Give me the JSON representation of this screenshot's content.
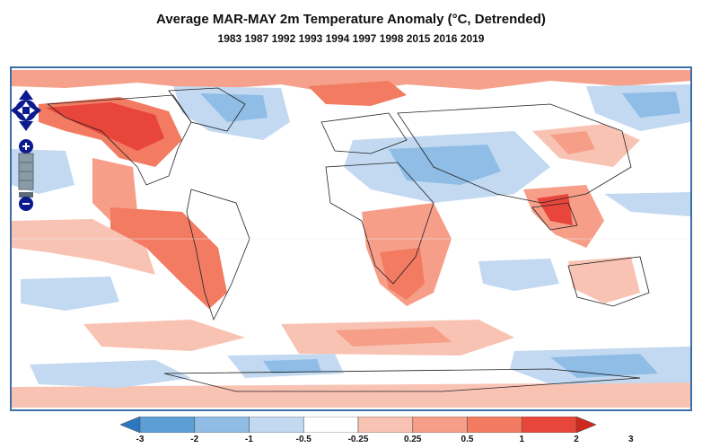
{
  "title": "Average MAR-MAY 2m Temperature Anomaly (°C, Detrended)",
  "subtitle": "1983 1987 1992 1993 1994 1997 1998 2015 2016 2019",
  "colorbar": {
    "labels": [
      "-3",
      "-2",
      "-1",
      "-0.5",
      "-0.25",
      "0.25",
      "0.5",
      "1",
      "2",
      "3"
    ],
    "colors": [
      "#2b78c2",
      "#5b9fd6",
      "#8fbde6",
      "#c2d9f1",
      "#ffffff",
      "#f9c3b4",
      "#f69e88",
      "#f27b62",
      "#e8453b",
      "#d0271f"
    ]
  },
  "controls": {
    "pan": "pan-control",
    "zoom_in": "zoom-in-button",
    "zoom_out": "zoom-out-button"
  }
}
